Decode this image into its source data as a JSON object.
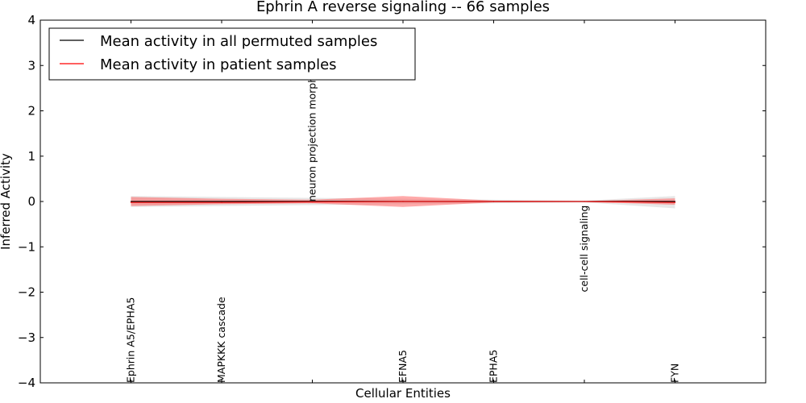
{
  "chart_data": {
    "type": "line",
    "title": "Ephrin A  reverse signaling -- 66 samples",
    "xlabel": "Cellular Entities",
    "ylabel": "Inferred Activity",
    "ylim": [
      -4,
      4
    ],
    "xlim": [
      -1,
      7
    ],
    "y_ticks": [
      4,
      3,
      2,
      1,
      0,
      -1,
      -2,
      -3,
      -4
    ],
    "y_tick_labels": [
      "4",
      "3",
      "2",
      "1",
      "0",
      "−1",
      "−2",
      "−3",
      "−4"
    ],
    "categories": [
      "Ephrin A5/EPHA5",
      "MAPKKK cascade",
      "neuron projection morphogenesis",
      "EFNA5",
      "EPHA5",
      "cell-cell signaling",
      "FYN"
    ],
    "category_label_y": [
      -4,
      -4,
      0,
      -4,
      -4,
      -2,
      -4
    ],
    "legend_position": "upper-left",
    "series": [
      {
        "name": "Mean activity in all permuted samples",
        "color": "#000000",
        "values": [
          0.0,
          0.0,
          0.0,
          0.0,
          0.0,
          0.0,
          0.0
        ],
        "band_upper": [
          0.12,
          0.1,
          0.08,
          0.06,
          0.04,
          0.02,
          0.12
        ],
        "band_lower": [
          -0.12,
          -0.1,
          -0.08,
          -0.06,
          -0.04,
          -0.02,
          -0.15
        ]
      },
      {
        "name": "Mean activity in patient samples",
        "color": "#ff0000",
        "values": [
          -0.02,
          -0.02,
          -0.01,
          0.0,
          0.0,
          0.0,
          -0.02
        ],
        "band_upper": [
          0.1,
          0.06,
          0.04,
          0.12,
          0.02,
          0.01,
          0.07
        ],
        "band_lower": [
          -0.1,
          -0.06,
          -0.04,
          -0.12,
          -0.02,
          -0.01,
          -0.07
        ]
      }
    ],
    "colors": {
      "permuted_band": "#d3d3d3",
      "patient_band": "#ff5555"
    }
  }
}
